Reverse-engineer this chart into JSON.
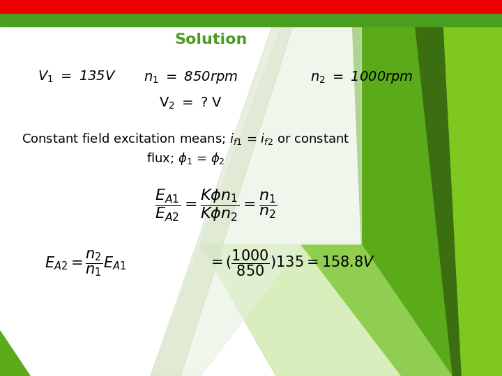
{
  "title": "Solution",
  "title_color": "#4a9e1f",
  "title_fontsize": 16,
  "bg_color": "#ffffff",
  "top_bar_color": "#ee0000",
  "green_strip_color": "#4a9e1f",
  "font_size_main": 14,
  "font_size_eq": 13,
  "font_size_bold": 13,
  "green_dark": "#3a6e10",
  "green_mid": "#5aaa1a",
  "green_light": "#8fce50",
  "green_pale": "#c8e8a0"
}
